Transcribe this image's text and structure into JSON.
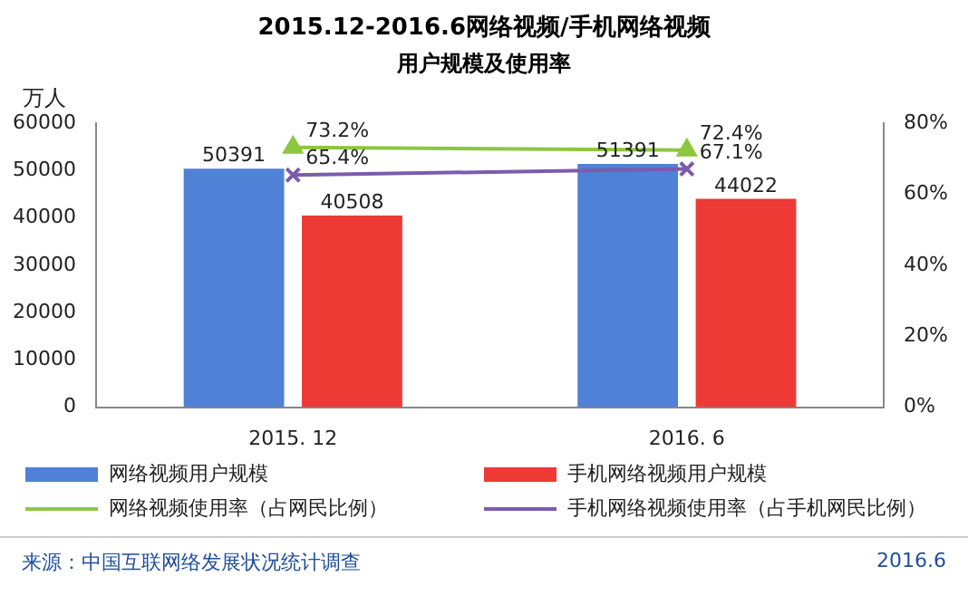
{
  "chart_data": {
    "type": "bar",
    "title": "2015.12-2016.6网络视频/手机网络视频",
    "subtitle": "用户规模及使用率",
    "ylabel": "万人",
    "categories": [
      "2015. 12",
      "2016. 6"
    ],
    "series": [
      {
        "name": "网络视频用户规模",
        "color": "#4f81d6",
        "values": [
          50391,
          51391
        ],
        "value_labels": [
          "50391",
          "51391"
        ]
      },
      {
        "name": "手机网络视频用户规模",
        "color": "#ee3a35",
        "values": [
          40508,
          44022
        ],
        "value_labels": [
          "40508",
          "44022"
        ]
      },
      {
        "name": "网络视频使用率（占网民比例）",
        "type": "line",
        "axis": "y2",
        "marker": "triangle",
        "color": "#8dc63f",
        "values": [
          73.2,
          72.4
        ],
        "value_labels": [
          "73.2%",
          "72.4%"
        ]
      },
      {
        "name": "手机网络视频使用率（占手机网民比例）",
        "type": "line",
        "axis": "y2",
        "marker": "cross",
        "color": "#7b5cab",
        "values": [
          65.4,
          67.1
        ],
        "value_labels": [
          "65.4%",
          "67.1%"
        ]
      }
    ],
    "ylim": [
      0,
      60000
    ],
    "yticks": [
      0,
      10000,
      20000,
      30000,
      40000,
      50000,
      60000
    ],
    "y2lim": [
      0,
      80
    ],
    "y2ticks": [
      {
        "value": 0,
        "label": "0%"
      },
      {
        "value": 20,
        "label": "20%"
      },
      {
        "value": 40,
        "label": "40%"
      },
      {
        "value": 60,
        "label": "60%"
      },
      {
        "value": 80,
        "label": "80%"
      }
    ],
    "legend": "bottom",
    "annotations": [
      "来源：中国互联网络发展状况统计调查",
      "2016.6"
    ]
  }
}
